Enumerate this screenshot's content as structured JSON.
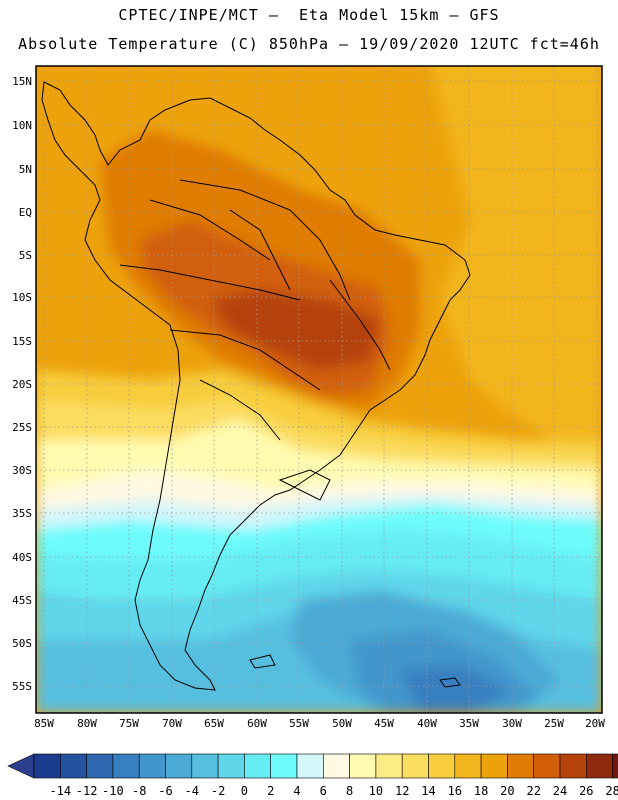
{
  "header": {
    "line1": "CPTEC/INPE/MCT –  Eta Model 15km – GFS",
    "line2": "Absolute Temperature (C) 850hPa – 19/09/2020 12UTC fct=46h"
  },
  "map": {
    "lat_labels": [
      "15N",
      "10N",
      "5N",
      "EQ",
      "5S",
      "10S",
      "15S",
      "20S",
      "25S",
      "30S",
      "35S",
      "40S",
      "45S",
      "50S",
      "55S"
    ],
    "lon_labels": [
      "85W",
      "80W",
      "75W",
      "70W",
      "65W",
      "60W",
      "55W",
      "50W",
      "45W",
      "40W",
      "35W",
      "30W",
      "25W",
      "20W"
    ]
  },
  "colorbar": {
    "labels": [
      "-14",
      "-12",
      "-10",
      "-8",
      "-6",
      "-4",
      "-2",
      "0",
      "2",
      "4",
      "6",
      "8",
      "10",
      "12",
      "14",
      "16",
      "18",
      "20",
      "22",
      "24",
      "26",
      "28"
    ],
    "colors": [
      "#1c3d8f",
      "#24529f",
      "#2d68b0",
      "#377fc0",
      "#4396cc",
      "#4caad6",
      "#56bfe0",
      "#5fd6ea",
      "#66ecf4",
      "#6dfbfb",
      "#d2f6fb",
      "#fff8e2",
      "#fffbb0",
      "#fdec86",
      "#fbdd60",
      "#f8cd3e",
      "#f3b51e",
      "#eda20b",
      "#e07b06",
      "#d25e07",
      "#b5420a",
      "#8f2a0e",
      "#6e180f"
    ],
    "low_end": "#2a3f8e",
    "high_end": "#7a0a2a"
  }
}
